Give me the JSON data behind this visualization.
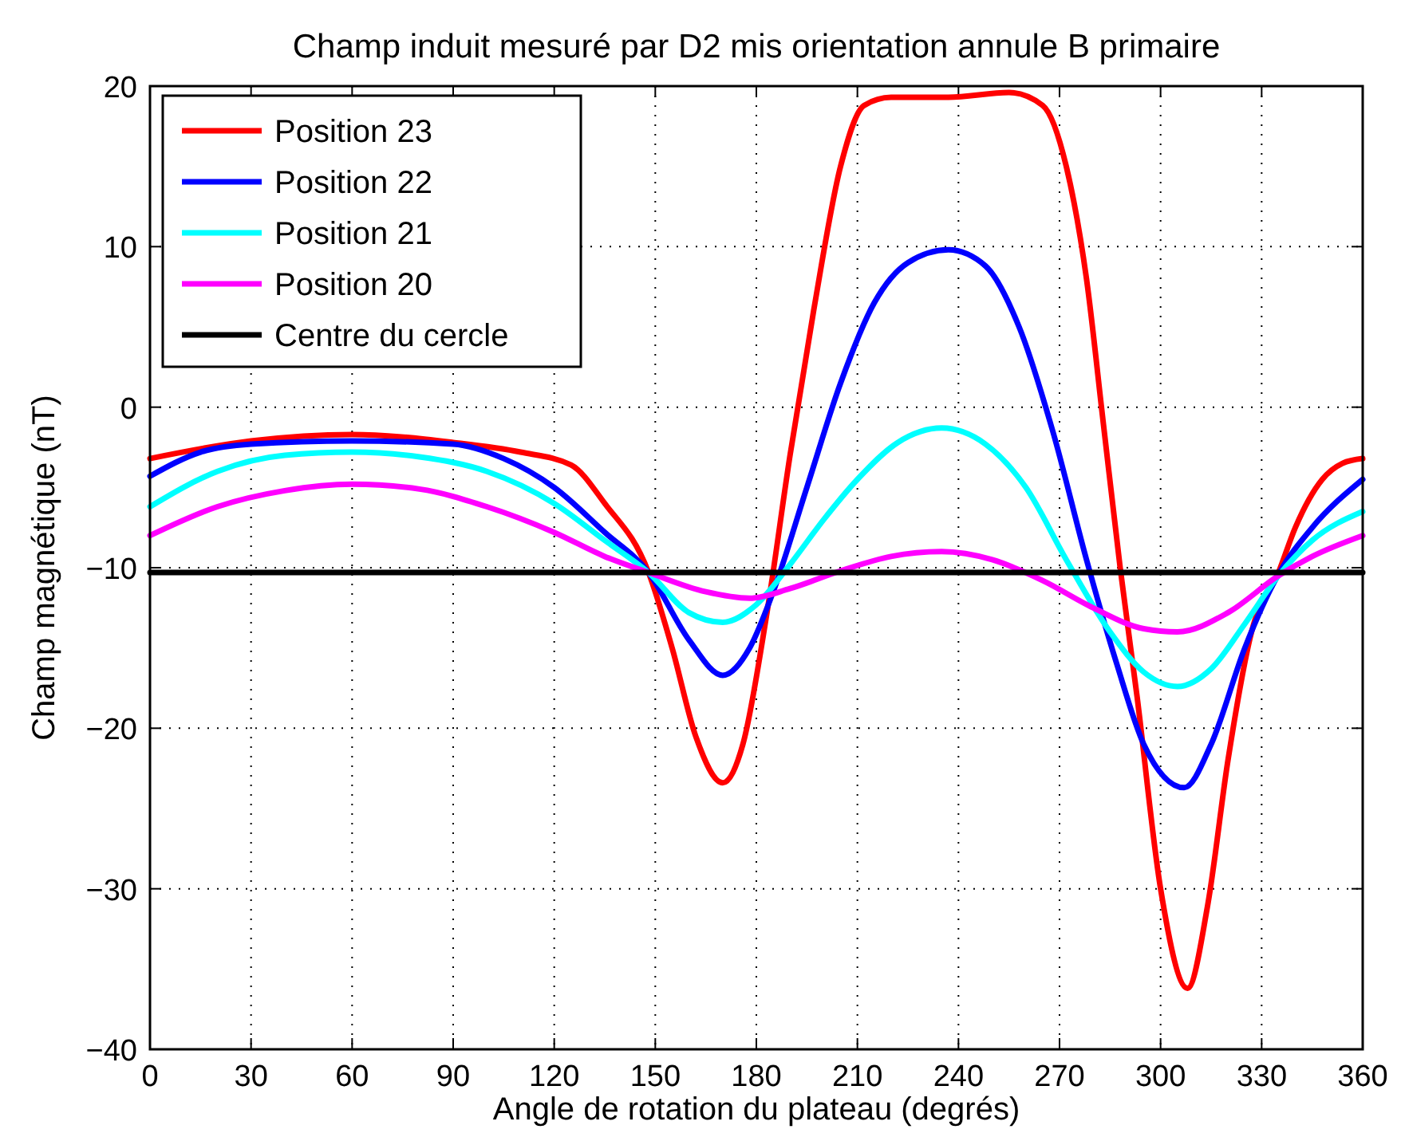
{
  "chart_data": {
    "type": "line",
    "title": "Champ induit mesuré par D2 mis orientation annule B primaire",
    "xlabel": "Angle de rotation du plateau (degrés)",
    "ylabel": "Champ magnétique (nT)",
    "xlim": [
      0,
      360
    ],
    "ylim": [
      -40,
      20
    ],
    "xticks": [
      0,
      30,
      60,
      90,
      120,
      150,
      180,
      210,
      240,
      270,
      300,
      330,
      360
    ],
    "yticks": [
      -40,
      -30,
      -20,
      -10,
      0,
      10,
      20
    ],
    "grid": true,
    "legend": "top left",
    "line_style": "solid",
    "marker": "none",
    "series": [
      {
        "name": "Position 23",
        "color": "#ff0000",
        "x": [
          0,
          30,
          60,
          90,
          110,
          125,
          135,
          148,
          155,
          162,
          170,
          176,
          183,
          190,
          197,
          205,
          212,
          220,
          237,
          255,
          265,
          272,
          278,
          283,
          288,
          293,
          300,
          308,
          314,
          320,
          327,
          335,
          340,
          348,
          354,
          360
        ],
        "values": [
          -3.2,
          -2.1,
          -1.7,
          -2.2,
          -2.8,
          -3.6,
          -6,
          -10.3,
          -15,
          -20.5,
          -23.4,
          -21,
          -13,
          -3,
          6,
          15,
          18.8,
          19.3,
          19.3,
          19.6,
          18.8,
          15,
          8,
          -1,
          -10,
          -18,
          -30,
          -36.2,
          -31,
          -22,
          -14,
          -10.3,
          -7.5,
          -4.5,
          -3.5,
          -3.2
        ]
      },
      {
        "name": "Position 22",
        "color": "#0000ff",
        "x": [
          0,
          15,
          30,
          60,
          90,
          105,
          120,
          135,
          148,
          160,
          170,
          178,
          185,
          195,
          205,
          215,
          225,
          237,
          248,
          258,
          268,
          278,
          287,
          295,
          307,
          315,
          325,
          335,
          345,
          360
        ],
        "values": [
          -4.3,
          -2.8,
          -2.3,
          -2.1,
          -2.3,
          -3.2,
          -5,
          -7.8,
          -10.3,
          -14.5,
          -16.7,
          -15,
          -11.5,
          -5,
          1.5,
          6.5,
          9,
          9.8,
          8.8,
          5,
          -1.5,
          -9.5,
          -16,
          -21,
          -23.7,
          -21,
          -15,
          -10.4,
          -7.5,
          -4.5
        ]
      },
      {
        "name": "Position 21",
        "color": "#00ffff",
        "x": [
          0,
          20,
          40,
          60,
          80,
          100,
          120,
          135,
          148,
          160,
          170,
          180,
          190,
          200,
          210,
          222,
          235,
          248,
          260,
          272,
          285,
          295,
          305,
          315,
          325,
          335,
          345,
          360
        ],
        "values": [
          -6.2,
          -4,
          -3,
          -2.8,
          -3.1,
          -4,
          -6,
          -8.3,
          -10.3,
          -12.8,
          -13.4,
          -12.3,
          -9.8,
          -7,
          -4.5,
          -2.2,
          -1.3,
          -2.3,
          -5,
          -9.5,
          -14,
          -16.5,
          -17.4,
          -16.3,
          -13.5,
          -10.5,
          -8.3,
          -6.5
        ]
      },
      {
        "name": "Position 20",
        "color": "#ff00ff",
        "x": [
          0,
          20,
          40,
          60,
          80,
          100,
          120,
          135,
          148,
          165,
          178,
          190,
          205,
          220,
          235,
          250,
          265,
          280,
          295,
          305,
          320,
          335,
          345,
          360
        ],
        "values": [
          -8,
          -6.2,
          -5.2,
          -4.8,
          -5.1,
          -6.2,
          -7.8,
          -9.3,
          -10.3,
          -11.5,
          -11.9,
          -11.3,
          -10.2,
          -9.3,
          -9,
          -9.5,
          -10.8,
          -12.5,
          -13.8,
          -14,
          -12.8,
          -10.5,
          -9.3,
          -8
        ]
      },
      {
        "name": "Centre du cercle",
        "color": "#000000",
        "x": [
          0,
          360
        ],
        "values": [
          -10.3,
          -10.3
        ]
      }
    ]
  }
}
